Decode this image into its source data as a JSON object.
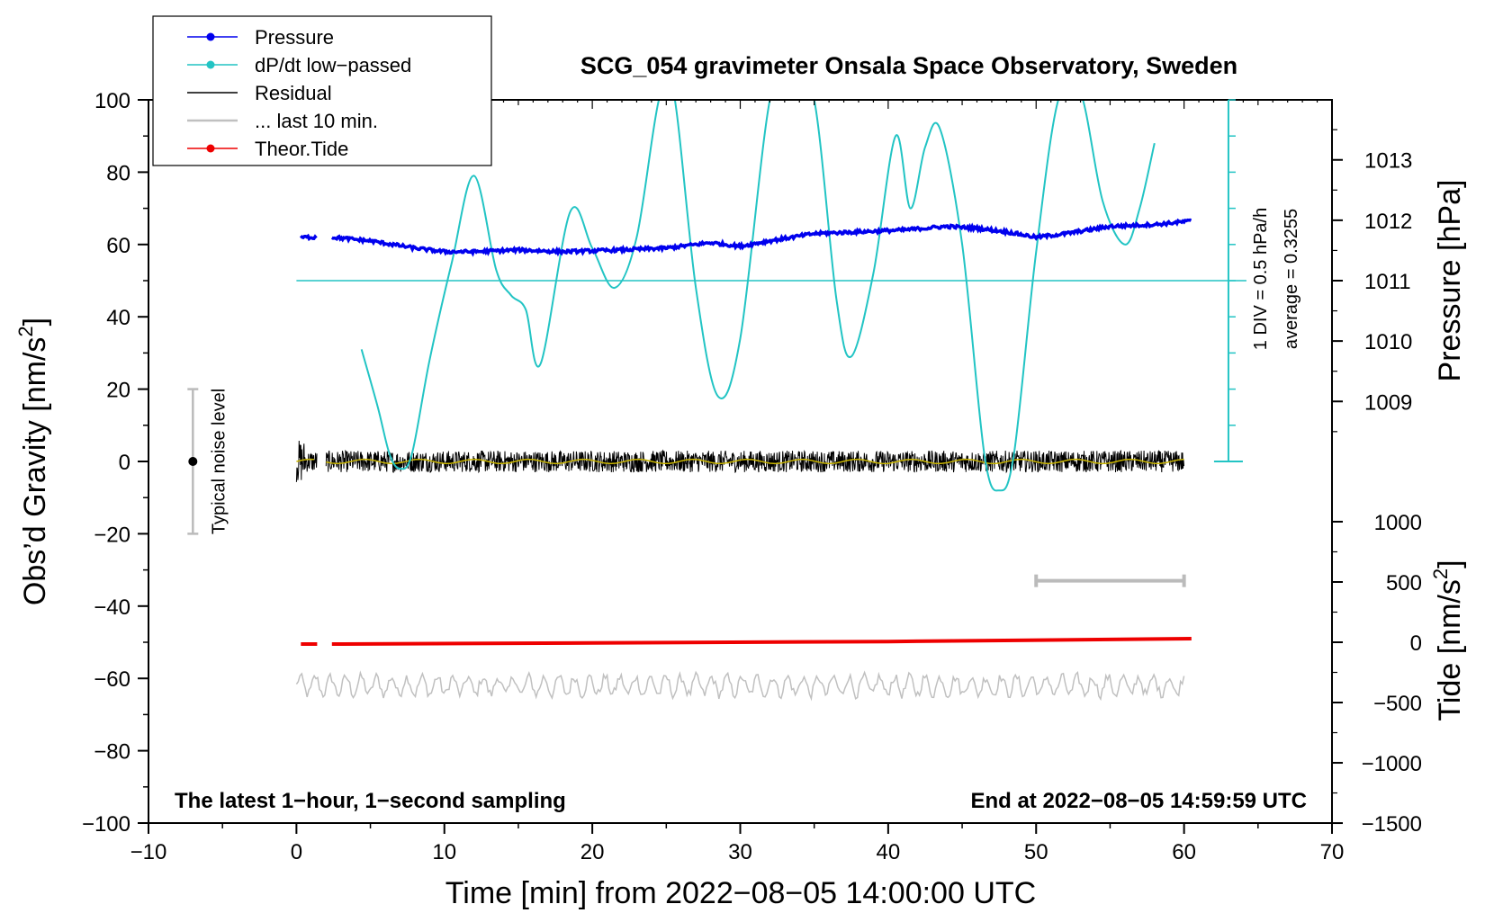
{
  "chart_data": {
    "type": "line",
    "title": "SCG_054 gravimeter Onsala Space Observatory, Sweden",
    "xlabel": "Time [min] from 2022−08−05 14:00:00 UTC",
    "ylabel_main": "Obs’d Gravity [nm/s",
    "ylabel_main_sup": "2",
    "ylabel_main_end": "]",
    "ylabel_pressure": "Pressure [hPa]",
    "ylabel_tide": "Tide [nm/s",
    "ylabel_tide_sup": "2",
    "ylabel_tide_end": "]",
    "xlim": [
      -10,
      70
    ],
    "ylim": [
      -100,
      100
    ],
    "x_ticks": [
      -10,
      0,
      10,
      20,
      30,
      40,
      50,
      60,
      70
    ],
    "x_tick_labels": [
      "−10",
      "0",
      "10",
      "20",
      "30",
      "40",
      "50",
      "60",
      "70"
    ],
    "y_ticks": [
      -100,
      -80,
      -60,
      -40,
      -20,
      0,
      20,
      40,
      60,
      80,
      100
    ],
    "y_tick_labels": [
      "−100",
      "−80",
      "−60",
      "−40",
      "−20",
      "0",
      "20",
      "40",
      "60",
      "80",
      "100"
    ],
    "pressure_axis": {
      "ticks": [
        1009,
        1010,
        1011,
        1012,
        1013
      ],
      "tick_labels": [
        "1009",
        "1010",
        "1011",
        "1012",
        "1013"
      ],
      "gravity_at_1011": 50,
      "gravity_per_hpa": 16.7
    },
    "tide_axis": {
      "ticks": [
        -1500,
        -1000,
        -500,
        0,
        500,
        1000
      ],
      "tick_labels": [
        "−1500",
        "−1000",
        "−500",
        "0",
        "500",
        "1000"
      ],
      "gravity_at_0": -50,
      "gravity_per_500": 16.67
    },
    "dpdt_scale": {
      "div_label": "1 DIV = 0.5 hPa/h",
      "average_label": "average = 0.3255",
      "axis_x": 63,
      "baseline": 50,
      "bottom": 0,
      "top": 100
    },
    "noise_bar": {
      "label": "Typical noise level",
      "x": -7,
      "center": 0,
      "low": -20,
      "high": 20
    },
    "last10_bar": {
      "x_start": 50,
      "x_end": 60,
      "y": -33
    },
    "notes": {
      "left": "The latest 1−hour, 1−second sampling",
      "right": "End at 2022−08−05 14:59:59 UTC"
    },
    "legend": [
      {
        "label": "Pressure",
        "color": "#0000ee",
        "marker": true
      },
      {
        "label": "dP/dt low−passed",
        "color": "#22c4c4",
        "marker": true
      },
      {
        "label": "Residual",
        "color": "#000000",
        "marker": false
      },
      {
        "label": "... last 10 min.",
        "color": "#c0c0c0",
        "marker": false
      },
      {
        "label": "Theor.Tide",
        "color": "#ee0000",
        "marker": true
      }
    ],
    "series": [
      {
        "name": "Pressure",
        "color": "#0000ee",
        "x": [
          0,
          1.3,
          2.4,
          5,
          8,
          10,
          12,
          15,
          18,
          22,
          25,
          28,
          30,
          32,
          35,
          38,
          41,
          44,
          46,
          48,
          50,
          52,
          55,
          58,
          60.5
        ],
        "y": [
          62,
          62,
          62,
          61,
          59,
          58,
          58,
          58.5,
          58,
          58.5,
          59,
          60.5,
          59.5,
          61,
          63,
          63.5,
          64,
          65,
          64.5,
          63.5,
          62,
          63,
          65,
          65.5,
          66.5
        ]
      },
      {
        "name": "dP/dt low-passed",
        "color": "#22c4c4",
        "x": [
          4.4,
          5.5,
          6.3,
          7,
          7.8,
          9,
          10.5,
          12,
          13.5,
          14.5,
          15.5,
          16.5,
          18.5,
          20,
          21.5,
          23,
          24.5,
          25.5,
          27,
          28.5,
          30,
          32,
          33.5,
          35,
          36.5,
          37.5,
          39,
          40.5,
          41.5,
          42.5,
          43.5,
          45,
          46.5,
          47.5,
          48.5,
          50,
          51.5,
          53,
          54.5,
          56,
          57,
          58
        ],
        "y": [
          31,
          15,
          2,
          -2,
          2,
          28,
          55,
          79,
          53,
          46,
          42,
          27,
          69,
          59,
          48,
          62,
          100,
          102,
          48,
          18,
          34,
          100,
          108,
          100,
          45,
          29,
          52,
          90,
          70,
          87,
          92,
          60,
          2,
          -8,
          2,
          58,
          100,
          102,
          72,
          60,
          70,
          88
        ]
      },
      {
        "name": "Theor.Tide",
        "color": "#ee0000",
        "x": [
          0.3,
          1.4,
          2.4,
          20,
          40,
          60.5
        ],
        "y": [
          -50.5,
          -50.5,
          -50.5,
          -50.2,
          -49.8,
          -49
        ]
      }
    ],
    "residual": {
      "name": "Residual",
      "color": "#000000",
      "amplitude": 3,
      "x_start": 0,
      "gap": [
        1.4,
        2.0
      ],
      "x_end": 60
    },
    "last10": {
      "name": "... last 10 min.",
      "color": "#c0c0c0",
      "center": -62,
      "amplitude": 3,
      "x_start": 0,
      "x_end": 60
    }
  }
}
